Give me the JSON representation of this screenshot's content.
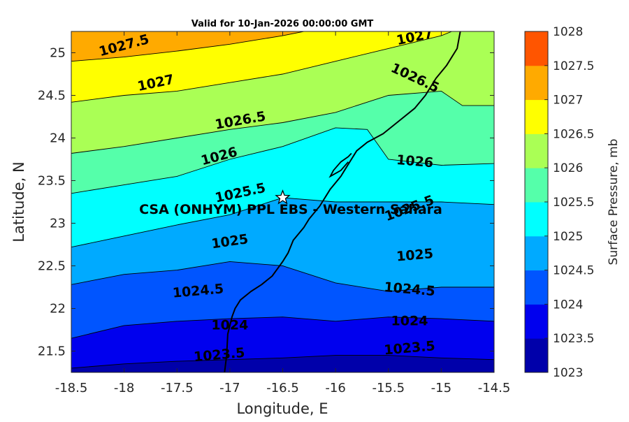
{
  "title": "Valid for 10-Jan-2026 00:00:00 GMT",
  "site_label": "CSA (ONHYM) PPL EBS - Western Sahara",
  "xlabel": "Longitude, E",
  "ylabel": "Latitude, N",
  "colorbar_label": "Surface Pressure, mb",
  "chart_data": {
    "type": "heatmap",
    "xlim": [
      -18.5,
      -14.5
    ],
    "ylim": [
      21.25,
      25.25
    ],
    "xticks": [
      "-18.5",
      "-18",
      "-17.5",
      "-17",
      "-16.5",
      "-16",
      "-15.5",
      "-15",
      "-14.5"
    ],
    "yticks": [
      "21.5",
      "22",
      "22.5",
      "23",
      "23.5",
      "24",
      "24.5",
      "25"
    ],
    "levels": [
      1023,
      1023.5,
      1024,
      1024.5,
      1025,
      1025.5,
      1026,
      1026.5,
      1027,
      1027.5,
      1028
    ],
    "level_colors": [
      "#0000aa",
      "#0000ee",
      "#0055ff",
      "#00aaff",
      "#00ffff",
      "#55ffaa",
      "#aaff55",
      "#ffff00",
      "#ffaa00",
      "#ff5500",
      "#ff0000"
    ],
    "colorbar_ticks": [
      "1023",
      "1023.5",
      "1024",
      "1024.5",
      "1025",
      "1025.5",
      "1026",
      "1026.5",
      "1027",
      "1027.5",
      "1028"
    ],
    "site": {
      "lon": -16.5,
      "lat": 23.3
    },
    "contours": [
      {
        "level": 1023.5,
        "points": [
          [
            -18.5,
            21.3
          ],
          [
            -18,
            21.35
          ],
          [
            -17.5,
            21.38
          ],
          [
            -17,
            21.4
          ],
          [
            -16.5,
            21.42
          ],
          [
            -16,
            21.45
          ],
          [
            -15.5,
            21.45
          ],
          [
            -15,
            21.42
          ],
          [
            -14.5,
            21.4
          ]
        ]
      },
      {
        "level": 1024,
        "points": [
          [
            -18.5,
            21.65
          ],
          [
            -18,
            21.8
          ],
          [
            -17.5,
            21.85
          ],
          [
            -17,
            21.88
          ],
          [
            -16.5,
            21.9
          ],
          [
            -16,
            21.85
          ],
          [
            -15.5,
            21.9
          ],
          [
            -15,
            21.88
          ],
          [
            -14.5,
            21.85
          ]
        ]
      },
      {
        "level": 1024.5,
        "points": [
          [
            -18.5,
            22.28
          ],
          [
            -18,
            22.4
          ],
          [
            -17.5,
            22.45
          ],
          [
            -17,
            22.55
          ],
          [
            -16.5,
            22.5
          ],
          [
            -16,
            22.3
          ],
          [
            -15.5,
            22.2
          ],
          [
            -15,
            22.25
          ],
          [
            -14.5,
            22.25
          ]
        ]
      },
      {
        "level": 1025,
        "points": [
          [
            -18.5,
            22.72
          ],
          [
            -18,
            22.85
          ],
          [
            -17.5,
            22.98
          ],
          [
            -17,
            23.1
          ],
          [
            -16.5,
            23.3
          ],
          [
            -16,
            23.25
          ],
          [
            -15.5,
            23.25
          ],
          [
            -15,
            23.25
          ],
          [
            -14.5,
            23.22
          ]
        ]
      },
      {
        "level": 1025.5,
        "points": [
          [
            -18.5,
            23.35
          ],
          [
            -18,
            23.45
          ],
          [
            -17.5,
            23.55
          ],
          [
            -17,
            23.75
          ],
          [
            -16.5,
            23.9
          ],
          [
            -16,
            24.12
          ],
          [
            -15.7,
            24.1
          ],
          [
            -15.5,
            23.75
          ],
          [
            -15,
            23.68
          ],
          [
            -14.5,
            23.7
          ]
        ]
      },
      {
        "level": 1026,
        "points": [
          [
            -18.5,
            23.82
          ],
          [
            -18,
            23.9
          ],
          [
            -17.5,
            24.0
          ],
          [
            -17,
            24.1
          ],
          [
            -16.5,
            24.18
          ],
          [
            -16,
            24.3
          ],
          [
            -15.5,
            24.5
          ],
          [
            -15,
            24.55
          ],
          [
            -14.8,
            24.38
          ],
          [
            -14.5,
            24.38
          ]
        ]
      },
      {
        "level": 1026.5,
        "points": [
          [
            -18.5,
            24.42
          ],
          [
            -18,
            24.5
          ],
          [
            -17.5,
            24.55
          ],
          [
            -17,
            24.65
          ],
          [
            -16.5,
            24.75
          ],
          [
            -16,
            24.9
          ],
          [
            -15.5,
            25.05
          ],
          [
            -15,
            25.2
          ],
          [
            -14.9,
            25.25
          ]
        ]
      },
      {
        "level": 1027,
        "points": [
          [
            -18.5,
            24.9
          ],
          [
            -18,
            24.95
          ],
          [
            -17.5,
            25.02
          ],
          [
            -17,
            25.1
          ],
          [
            -16.5,
            25.2
          ],
          [
            -16.3,
            25.25
          ]
        ]
      }
    ],
    "contour_labels": [
      {
        "text": "1027.5",
        "lon": -18.0,
        "lat": 25.08,
        "rotate": -15
      },
      {
        "text": "1027",
        "lon": -15.25,
        "lat": 25.18,
        "rotate": -12
      },
      {
        "text": "1027",
        "lon": -17.7,
        "lat": 24.64,
        "rotate": -12
      },
      {
        "text": "1026.5",
        "lon": -15.25,
        "lat": 24.7,
        "rotate": 25
      },
      {
        "text": "1026.5",
        "lon": -16.9,
        "lat": 24.2,
        "rotate": -10
      },
      {
        "text": "1026",
        "lon": -17.1,
        "lat": 23.78,
        "rotate": -15
      },
      {
        "text": "1026",
        "lon": -15.25,
        "lat": 23.72,
        "rotate": 5
      },
      {
        "text": "1025.5",
        "lon": -16.9,
        "lat": 23.35,
        "rotate": -12
      },
      {
        "text": "1025.5",
        "lon": -15.3,
        "lat": 23.17,
        "rotate": -20
      },
      {
        "text": "1025",
        "lon": -17.0,
        "lat": 22.78,
        "rotate": -8
      },
      {
        "text": "1025",
        "lon": -15.25,
        "lat": 22.62,
        "rotate": -5
      },
      {
        "text": "1024.5",
        "lon": -17.3,
        "lat": 22.2,
        "rotate": -5
      },
      {
        "text": "1024.5",
        "lon": -15.3,
        "lat": 22.22,
        "rotate": 5
      },
      {
        "text": "1024",
        "lon": -17.0,
        "lat": 21.8,
        "rotate": 0
      },
      {
        "text": "1024",
        "lon": -15.3,
        "lat": 21.85,
        "rotate": 0
      },
      {
        "text": "1023.5",
        "lon": -17.1,
        "lat": 21.45,
        "rotate": -5
      },
      {
        "text": "1023.5",
        "lon": -15.3,
        "lat": 21.53,
        "rotate": -5
      }
    ],
    "coastline": [
      [
        -17.05,
        21.25
      ],
      [
        -17.03,
        21.45
      ],
      [
        -17.02,
        21.7
      ],
      [
        -16.98,
        21.9
      ],
      [
        -16.95,
        22.0
      ],
      [
        -16.9,
        22.1
      ],
      [
        -16.8,
        22.2
      ],
      [
        -16.7,
        22.28
      ],
      [
        -16.6,
        22.38
      ],
      [
        -16.5,
        22.55
      ],
      [
        -16.45,
        22.65
      ],
      [
        -16.4,
        22.8
      ],
      [
        -16.3,
        22.95
      ],
      [
        -16.25,
        23.05
      ],
      [
        -16.15,
        23.2
      ],
      [
        -16.05,
        23.4
      ],
      [
        -15.95,
        23.55
      ],
      [
        -15.9,
        23.65
      ],
      [
        -15.85,
        23.75
      ],
      [
        -15.8,
        23.85
      ],
      [
        -15.7,
        23.95
      ],
      [
        -15.55,
        24.05
      ],
      [
        -15.4,
        24.2
      ],
      [
        -15.25,
        24.35
      ],
      [
        -15.15,
        24.5
      ],
      [
        -15.05,
        24.7
      ],
      [
        -14.95,
        24.85
      ],
      [
        -14.85,
        25.05
      ],
      [
        -14.82,
        25.25
      ]
    ],
    "peninsula": [
      [
        -15.88,
        23.72
      ],
      [
        -15.95,
        23.62
      ],
      [
        -16.05,
        23.55
      ],
      [
        -16.02,
        23.62
      ],
      [
        -15.95,
        23.72
      ],
      [
        -15.88,
        23.78
      ],
      [
        -15.85,
        23.82
      ]
    ]
  }
}
